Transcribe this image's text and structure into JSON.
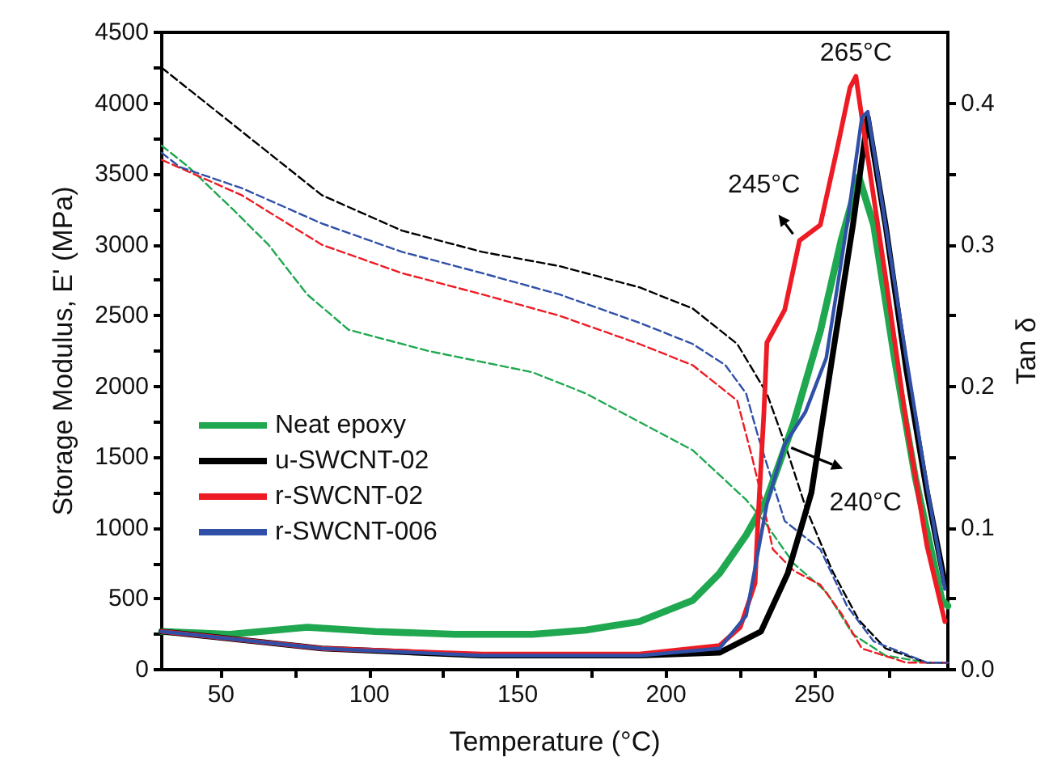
{
  "chart_data": {
    "type": "line",
    "xlabel": "Temperature (°C)",
    "ylabel": "Storage Modulus, E' (MPa)",
    "y2label": "Tan δ",
    "xlim": [
      30,
      295
    ],
    "xticks": [
      50,
      {
        "value": 75,
        "label": null
      },
      100,
      {
        "value": 125,
        "label": null
      },
      150,
      {
        "value": 175,
        "label": null
      },
      200,
      {
        "value": 225,
        "label": null
      },
      250,
      {
        "value": 275,
        "label": null
      }
    ],
    "ylim": [
      0,
      4500
    ],
    "yticks": [
      0,
      {
        "value": 250,
        "label": null
      },
      500,
      {
        "value": 750,
        "label": null
      },
      1000,
      {
        "value": 1250,
        "label": null
      },
      1500,
      {
        "value": 1750,
        "label": null
      },
      2000,
      {
        "value": 2250,
        "label": null
      },
      2500,
      {
        "value": 2750,
        "label": null
      },
      3000,
      {
        "value": 3250,
        "label": null
      },
      3500,
      {
        "value": 3750,
        "label": null
      },
      4000,
      {
        "value": 4250,
        "label": null
      },
      4500
    ],
    "y2lim": [
      0,
      0.45
    ],
    "y2ticks": [
      {
        "value": 0,
        "label": "0.0"
      },
      {
        "value": 0.05,
        "label": null
      },
      0.1,
      {
        "value": 0.15,
        "label": null
      },
      0.2,
      {
        "value": 0.25,
        "label": null
      },
      0.3,
      {
        "value": 0.35,
        "label": null
      },
      0.4
    ],
    "grid": false,
    "legend": "left",
    "marker": "none",
    "series": [
      {
        "name": "Neat epoxy",
        "color": "#1fa84f",
        "axis": "y2",
        "line_style": "solid",
        "x": [
          30,
          53,
          79,
          102,
          129,
          155,
          173,
          191,
          209,
          218,
          227,
          234,
          243,
          252,
          259,
          265,
          270,
          277,
          284,
          293,
          295
        ],
        "values": [
          0.027,
          0.025,
          0.03,
          0.027,
          0.025,
          0.025,
          0.028,
          0.034,
          0.049,
          0.068,
          0.095,
          0.121,
          0.174,
          0.239,
          0.303,
          0.348,
          0.314,
          0.22,
          0.136,
          0.049,
          0.045
        ]
      },
      {
        "name": "u-SWCNT-02",
        "color": "#000000",
        "axis": "y2",
        "line_style": "solid",
        "x": [
          30,
          84,
          138,
          191,
          218,
          232,
          241,
          249,
          256,
          263,
          268,
          274,
          281,
          288,
          294
        ],
        "values": [
          0.027,
          0.015,
          0.01,
          0.01,
          0.012,
          0.027,
          0.068,
          0.125,
          0.22,
          0.314,
          0.39,
          0.314,
          0.212,
          0.125,
          0.061
        ]
      },
      {
        "name": "r-SWCNT-02",
        "color": "#ed1c24",
        "axis": "y2",
        "line_style": "solid",
        "x": [
          30,
          84,
          138,
          191,
          218,
          225,
          230,
          231,
          233,
          234,
          240,
          245,
          252,
          258,
          262,
          264,
          266,
          274,
          281,
          288,
          294
        ],
        "values": [
          0.027,
          0.015,
          0.011,
          0.011,
          0.017,
          0.03,
          0.061,
          0.106,
          0.182,
          0.231,
          0.254,
          0.303,
          0.314,
          0.371,
          0.411,
          0.419,
          0.39,
          0.277,
          0.174,
          0.087,
          0.034
        ]
      },
      {
        "name": "r-SWCNT-006",
        "color": "#3050a8",
        "axis": "y2",
        "line_style": "solid",
        "x": [
          30,
          84,
          138,
          191,
          218,
          227,
          234,
          240,
          247,
          254,
          261,
          266,
          268,
          274,
          281,
          288,
          294
        ],
        "values": [
          0.027,
          0.015,
          0.01,
          0.01,
          0.015,
          0.038,
          0.117,
          0.159,
          0.182,
          0.22,
          0.314,
          0.39,
          0.394,
          0.314,
          0.22,
          0.129,
          0.057
        ]
      },
      {
        "color": "#1fa84f",
        "line_style": "dashed",
        "x": [
          30,
          39,
          54,
          66,
          79,
          93,
          120,
          155,
          173,
          209,
          227,
          233,
          243,
          254,
          263,
          274,
          288,
          295
        ],
        "values": [
          3700,
          3550,
          3250,
          3000,
          2650,
          2400,
          2250,
          2100,
          1950,
          1550,
          1200,
          1050,
          750,
          550,
          250,
          100,
          50,
          50
        ]
      },
      {
        "color": "#000000",
        "line_style": "dashed",
        "x": [
          30,
          66,
          84,
          111,
          138,
          164,
          191,
          209,
          224,
          234,
          240,
          247,
          256,
          265,
          274,
          288,
          295
        ],
        "values": [
          4250,
          3650,
          3350,
          3100,
          2950,
          2850,
          2700,
          2550,
          2300,
          1950,
          1600,
          1150,
          700,
          350,
          150,
          50,
          50
        ]
      },
      {
        "color": "#ed1c24",
        "line_style": "dashed",
        "x": [
          30,
          57,
          84,
          111,
          138,
          164,
          191,
          209,
          218,
          224,
          229,
          233,
          236,
          243,
          252,
          259,
          266,
          281,
          295
        ],
        "values": [
          3600,
          3350,
          3000,
          2800,
          2650,
          2500,
          2300,
          2150,
          2000,
          1900,
          1500,
          1150,
          850,
          700,
          600,
          400,
          150,
          50,
          50
        ]
      },
      {
        "color": "#3050a8",
        "line_style": "dashed",
        "x": [
          30,
          36,
          57,
          84,
          111,
          138,
          164,
          191,
          209,
          220,
          227,
          231,
          240,
          252,
          261,
          270,
          288,
          295
        ],
        "values": [
          3650,
          3550,
          3400,
          3150,
          2950,
          2800,
          2650,
          2450,
          2300,
          2150,
          1950,
          1650,
          1050,
          850,
          450,
          200,
          50,
          50
        ]
      }
    ],
    "annotations": [
      {
        "text": "265°C",
        "x": 264,
        "y": 4190
      },
      {
        "text": "245°C",
        "x": 245,
        "y": 3030
      },
      {
        "text": "240°C",
        "x": 240,
        "y": 1590
      }
    ]
  }
}
